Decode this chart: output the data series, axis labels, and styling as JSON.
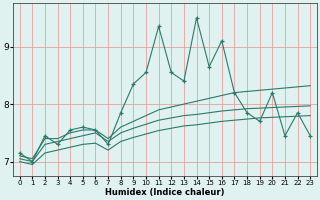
{
  "xlabel": "Humidex (Indice chaleur)",
  "bg_color": "#dff2ef",
  "grid_color": "#e8a0a0",
  "line_color": "#2a7a6a",
  "xlim": [
    -0.5,
    23.5
  ],
  "ylim": [
    6.75,
    9.75
  ],
  "xticks": [
    0,
    1,
    2,
    3,
    4,
    5,
    6,
    7,
    8,
    9,
    10,
    11,
    12,
    13,
    14,
    15,
    16,
    17,
    18,
    19,
    20,
    21,
    22,
    23
  ],
  "yticks": [
    7,
    8,
    9
  ],
  "series": {
    "main": [
      7.15,
      7.0,
      7.45,
      7.3,
      7.55,
      7.6,
      7.55,
      7.3,
      7.85,
      8.35,
      8.55,
      9.35,
      8.55,
      8.4,
      9.5,
      8.65,
      9.1,
      8.2,
      7.85,
      7.7,
      8.2,
      7.45,
      7.85,
      7.45
    ],
    "upper": [
      7.1,
      7.05,
      7.4,
      7.4,
      7.5,
      7.55,
      7.55,
      7.4,
      7.6,
      7.7,
      7.8,
      7.9,
      7.95,
      8.0,
      8.05,
      8.1,
      8.15,
      8.2,
      8.22,
      8.24,
      8.26,
      8.28,
      8.3,
      8.32
    ],
    "middle": [
      7.05,
      7.0,
      7.3,
      7.35,
      7.4,
      7.45,
      7.5,
      7.35,
      7.5,
      7.58,
      7.65,
      7.72,
      7.76,
      7.8,
      7.82,
      7.85,
      7.88,
      7.9,
      7.92,
      7.93,
      7.94,
      7.95,
      7.96,
      7.97
    ],
    "lower": [
      7.0,
      6.95,
      7.15,
      7.2,
      7.25,
      7.3,
      7.32,
      7.2,
      7.35,
      7.42,
      7.48,
      7.54,
      7.58,
      7.62,
      7.64,
      7.67,
      7.7,
      7.72,
      7.74,
      7.76,
      7.77,
      7.78,
      7.79,
      7.8
    ]
  }
}
